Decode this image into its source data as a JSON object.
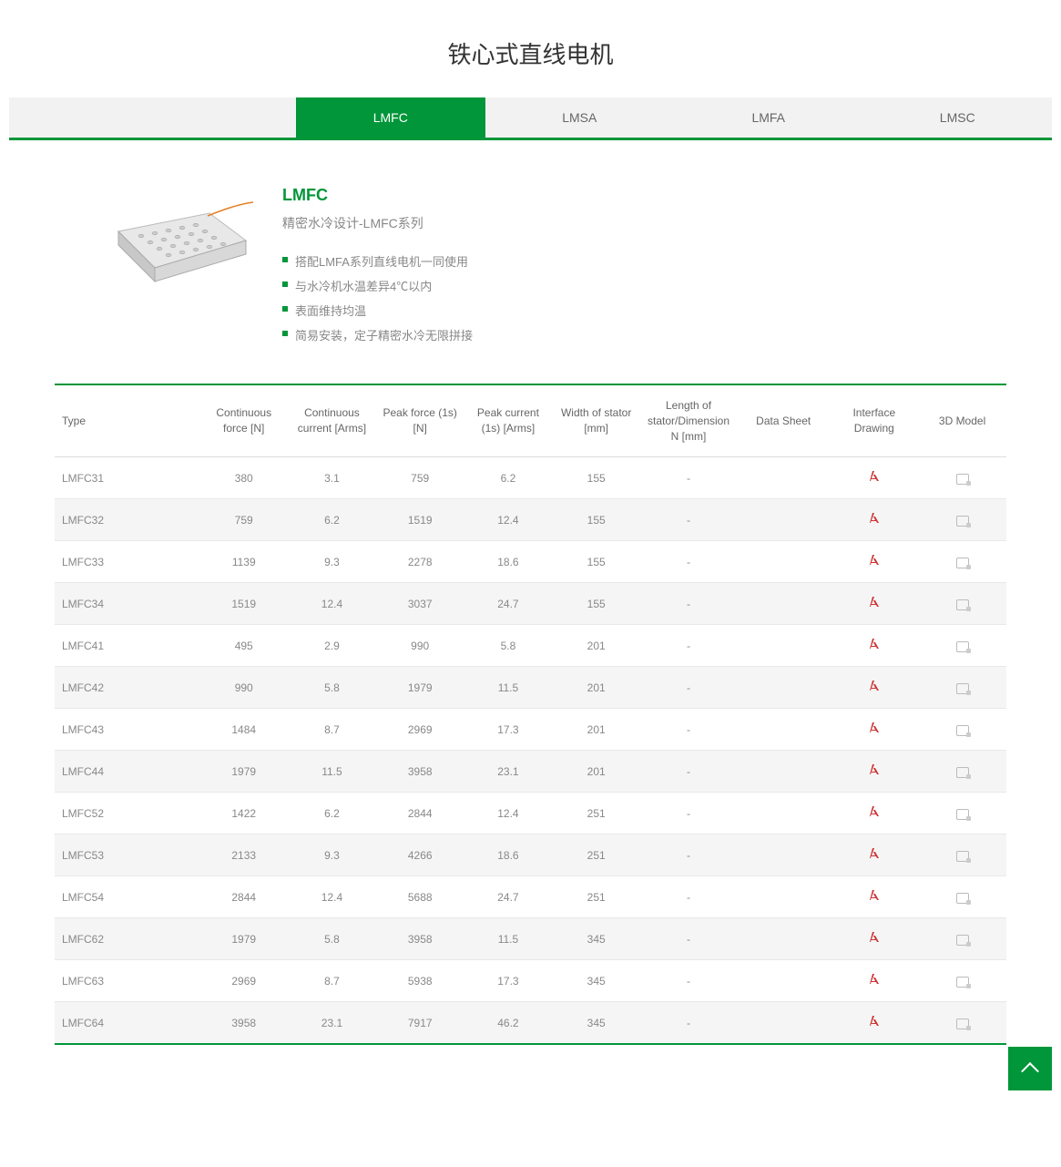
{
  "page_title": "铁心式直线电机",
  "tabs": [
    {
      "label": "LMFC",
      "active": true
    },
    {
      "label": "LMSA",
      "active": false
    },
    {
      "label": "LMFA",
      "active": false
    },
    {
      "label": "LMSC",
      "active": false
    }
  ],
  "series": {
    "name": "LMFC",
    "subtitle": "精密水冷设计-LMFC系列",
    "features": [
      "搭配LMFA系列直线电机一同使用",
      "与水冷机水温差异4℃以内",
      "表面维持均温",
      "简易安装，定子精密水冷无限拼接"
    ]
  },
  "table": {
    "columns": [
      "Type",
      "Continuous force [N]",
      "Continuous current [Arms]",
      "Peak force (1s) [N]",
      "Peak current (1s) [Arms]",
      "Width of stator [mm]",
      "Length of stator/Dimension N [mm]",
      "Data Sheet",
      "Interface Drawing",
      "3D Model"
    ],
    "rows": [
      {
        "type": "LMFC31",
        "cf": "380",
        "cc": "3.1",
        "pf": "759",
        "pc": "6.2",
        "w": "155",
        "l": "-",
        "ds": ""
      },
      {
        "type": "LMFC32",
        "cf": "759",
        "cc": "6.2",
        "pf": "1519",
        "pc": "12.4",
        "w": "155",
        "l": "-",
        "ds": ""
      },
      {
        "type": "LMFC33",
        "cf": "1139",
        "cc": "9.3",
        "pf": "2278",
        "pc": "18.6",
        "w": "155",
        "l": "-",
        "ds": ""
      },
      {
        "type": "LMFC34",
        "cf": "1519",
        "cc": "12.4",
        "pf": "3037",
        "pc": "24.7",
        "w": "155",
        "l": "-",
        "ds": ""
      },
      {
        "type": "LMFC41",
        "cf": "495",
        "cc": "2.9",
        "pf": "990",
        "pc": "5.8",
        "w": "201",
        "l": "-",
        "ds": ""
      },
      {
        "type": "LMFC42",
        "cf": "990",
        "cc": "5.8",
        "pf": "1979",
        "pc": "11.5",
        "w": "201",
        "l": "-",
        "ds": ""
      },
      {
        "type": "LMFC43",
        "cf": "1484",
        "cc": "8.7",
        "pf": "2969",
        "pc": "17.3",
        "w": "201",
        "l": "-",
        "ds": ""
      },
      {
        "type": "LMFC44",
        "cf": "1979",
        "cc": "11.5",
        "pf": "3958",
        "pc": "23.1",
        "w": "201",
        "l": "-",
        "ds": ""
      },
      {
        "type": "LMFC52",
        "cf": "1422",
        "cc": "6.2",
        "pf": "2844",
        "pc": "12.4",
        "w": "251",
        "l": "-",
        "ds": ""
      },
      {
        "type": "LMFC53",
        "cf": "2133",
        "cc": "9.3",
        "pf": "4266",
        "pc": "18.6",
        "w": "251",
        "l": "-",
        "ds": ""
      },
      {
        "type": "LMFC54",
        "cf": "2844",
        "cc": "12.4",
        "pf": "5688",
        "pc": "24.7",
        "w": "251",
        "l": "-",
        "ds": ""
      },
      {
        "type": "LMFC62",
        "cf": "1979",
        "cc": "5.8",
        "pf": "3958",
        "pc": "11.5",
        "w": "345",
        "l": "-",
        "ds": ""
      },
      {
        "type": "LMFC63",
        "cf": "2969",
        "cc": "8.7",
        "pf": "5938",
        "pc": "17.3",
        "w": "345",
        "l": "-",
        "ds": ""
      },
      {
        "type": "LMFC64",
        "cf": "3958",
        "cc": "23.1",
        "pf": "7917",
        "pc": "46.2",
        "w": "345",
        "l": "-",
        "ds": ""
      }
    ]
  },
  "colors": {
    "brand": "#009639",
    "pdf": "#cc3333",
    "text": "#666",
    "muted": "#888",
    "row_alt": "#f5f5f5"
  }
}
